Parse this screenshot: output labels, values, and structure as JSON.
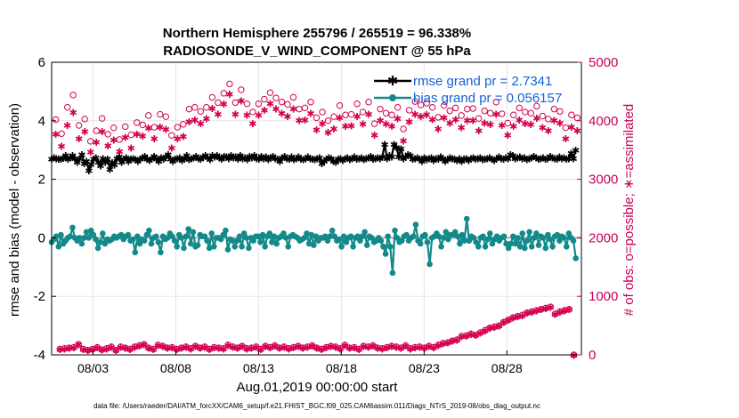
{
  "chart_data": {
    "type": "line",
    "title": "Northern Hemisphere 255796 / 265519 = 96.338%",
    "subtitle": "RADIOSONDE_V_WIND_COMPONENT @ 55 hPa",
    "xlabel": "Aug.01,2019 00:00:00 start",
    "ylabel": "rmse and bias (model - observation)",
    "ylabel_right": "# of obs: o=possible; ∗=assimilated",
    "footer": "data file: /Users/raeder/DAI/ATM_forcXX/CAM6_setup/f.e21.FHIST_BGC.f09_025.CAM6assim.011/Diags_NTrS_2019-08/obs_diag_output.nc",
    "ylim": [
      -4,
      6
    ],
    "ylim_right": [
      0,
      5000
    ],
    "xlim": [
      0.5,
      32.5
    ],
    "yticks": [
      "-4",
      "-2",
      "0",
      "2",
      "4",
      "6"
    ],
    "yticks_right": [
      "0",
      "1000",
      "2000",
      "3000",
      "4000",
      "5000"
    ],
    "xticks": [
      {
        "value": 3,
        "label": "08/03"
      },
      {
        "value": 8,
        "label": "08/08"
      },
      {
        "value": 13,
        "label": "08/13"
      },
      {
        "value": 18,
        "label": "08/18"
      },
      {
        "value": 23,
        "label": "08/23"
      },
      {
        "value": 28,
        "label": "08/28"
      }
    ],
    "grid": true,
    "legend_position": "top-right",
    "x_step_days": 0.25,
    "series": [
      {
        "name": "rmse grand pr = 2.7341",
        "color": "#000000",
        "marker": "star",
        "values": [
          2.7,
          2.75,
          2.72,
          2.7,
          2.7,
          2.73,
          2.82,
          2.7,
          2.75,
          2.82,
          2.72,
          2.6,
          2.72,
          2.85,
          2.55,
          2.62,
          2.3,
          2.52,
          2.7,
          2.75,
          2.6,
          2.48,
          2.72,
          2.6,
          2.7,
          2.35,
          2.58,
          2.5,
          2.72,
          2.78,
          2.6,
          2.7,
          2.75,
          2.62,
          2.7,
          2.72,
          2.68,
          2.62,
          2.7,
          2.75,
          2.8,
          2.7,
          2.65,
          2.72,
          2.8,
          2.7,
          2.62,
          2.75,
          2.7,
          2.78,
          2.85,
          2.7,
          2.62,
          2.7,
          2.72,
          2.75,
          2.65,
          2.72,
          2.82,
          2.68,
          2.72,
          2.75,
          2.8,
          2.72,
          2.7,
          2.78,
          2.82,
          2.75,
          2.68,
          2.82,
          2.78,
          2.82,
          2.75,
          2.7,
          2.8,
          2.78,
          2.72,
          2.82,
          2.75,
          2.78,
          2.7,
          2.82,
          2.72,
          2.75,
          2.68,
          2.8,
          2.75,
          2.82,
          2.72,
          2.7,
          2.8,
          2.72,
          2.78,
          2.68,
          2.75,
          2.8,
          2.72,
          2.7,
          2.62,
          2.75,
          2.8,
          2.72,
          2.7,
          2.78,
          2.68,
          2.72,
          2.78,
          2.7,
          2.68,
          2.72,
          2.78,
          2.72,
          2.7,
          2.68,
          2.72,
          2.75,
          2.55,
          2.62,
          2.7,
          2.75,
          2.72,
          2.62,
          2.6,
          2.7,
          2.72,
          2.65,
          2.72,
          2.75,
          2.68,
          2.72,
          2.78,
          2.7,
          2.72,
          2.75,
          2.68,
          2.72,
          2.75,
          2.8,
          2.7,
          2.72,
          2.75,
          2.72,
          2.78,
          3.2,
          2.72,
          2.82,
          2.78,
          3.2,
          3.1,
          2.78,
          3.05,
          2.72,
          2.78,
          2.85,
          2.82,
          2.7,
          2.72,
          2.75,
          2.7,
          2.62,
          2.75,
          2.68,
          2.72,
          2.75,
          2.65,
          2.72,
          2.7,
          2.78,
          2.72,
          2.62,
          2.68,
          2.75,
          2.72,
          2.7,
          2.65,
          2.72,
          2.62,
          2.7,
          2.72,
          2.65,
          2.72,
          2.75,
          2.7,
          2.72,
          2.75,
          2.68,
          2.7,
          2.72,
          2.75,
          2.7,
          2.65,
          2.72,
          2.78,
          2.72,
          2.7,
          2.75,
          2.72,
          2.85,
          2.82,
          2.72,
          2.75,
          2.78,
          2.72,
          2.75,
          2.68,
          2.72,
          2.75,
          2.8,
          2.75,
          2.7,
          2.72,
          2.75,
          2.7,
          2.72,
          2.8,
          2.75,
          2.72,
          2.7,
          2.78,
          2.72,
          2.75,
          2.7,
          2.72,
          2.9,
          2.72,
          3.0
        ]
      },
      {
        "name": "bias grand pr = 0.056157",
        "color": "#138a8a",
        "marker": "circle",
        "values": [
          -0.15,
          -0.05,
          0.05,
          -0.3,
          0.1,
          -0.2,
          -0.1,
          0.0,
          0.05,
          0.35,
          0.0,
          -0.1,
          0.0,
          -0.2,
          0.0,
          0.2,
          0.0,
          0.25,
          0.1,
          -0.05,
          -0.35,
          -0.15,
          0.15,
          -0.2,
          -0.05,
          -0.1,
          -0.05,
          0.05,
          0.0,
          0.05,
          0.1,
          -0.05,
          0.05,
          0.1,
          -0.1,
          -0.05,
          -0.5,
          0.05,
          -0.2,
          -0.05,
          -0.1,
          0.1,
          0.25,
          -0.2,
          0.0,
          0.05,
          -0.15,
          -0.5,
          0.05,
          -0.05,
          0.0,
          0.15,
          0.05,
          -0.1,
          -0.3,
          0.1,
          0.0,
          -0.35,
          0.05,
          0.3,
          -0.2,
          0.2,
          -0.3,
          -0.25,
          0.1,
          0.05,
          0.05,
          -0.1,
          -0.35,
          0.15,
          -0.3,
          0.0,
          0.0,
          -0.05,
          0.1,
          0.25,
          -0.4,
          -0.05,
          -0.1,
          -0.3,
          -0.1,
          0.05,
          -0.3,
          0.15,
          0.0,
          -0.35,
          0.0,
          -0.1,
          0.05,
          0.05,
          -0.15,
          0.1,
          -0.3,
          0.05,
          0.15,
          -0.15,
          0.05,
          -0.2,
          0.0,
          0.05,
          0.15,
          0.0,
          -0.3,
          0.05,
          0.1,
          0.05,
          0.0,
          -0.1,
          -0.05,
          0.0,
          0.15,
          -0.2,
          0.1,
          -0.25,
          0.05,
          -0.1,
          0.0,
          0.0,
          0.05,
          -0.1,
          0.05,
          0.25,
          0.05,
          -0.1,
          -0.05,
          -0.3,
          0.05,
          -0.15,
          0.0,
          0.05,
          -0.3,
          0.0,
          0.05,
          -0.1,
          0.05,
          0.2,
          -0.25,
          0.05,
          0.0,
          -0.15,
          -0.1,
          0.0,
          -0.1,
          -0.3,
          -0.55,
          0.05,
          -0.3,
          -1.2,
          0.25,
          0.0,
          -0.15,
          -0.1,
          0.05,
          0.1,
          -0.1,
          0.0,
          0.05,
          0.45,
          -0.1,
          -0.2,
          0.05,
          0.1,
          -0.15,
          -0.9,
          0.0,
          0.05,
          0.15,
          0.05,
          -0.3,
          0.0,
          0.2,
          -0.05,
          0.1,
          0.1,
          0.2,
          0.05,
          -0.2,
          0.1,
          -0.1,
          0.65,
          -0.1,
          0.05,
          0.0,
          -0.15,
          -0.3,
          0.0,
          0.05,
          -0.3,
          -0.05,
          0.15,
          -0.2,
          -0.05,
          0.05,
          -0.1,
          0.0,
          0.05,
          -0.2,
          -0.35,
          -0.2,
          0.05,
          -0.2,
          0.0,
          -0.3,
          0.15,
          -0.35,
          -0.1,
          0.2,
          -0.3,
          0.0,
          0.15,
          -0.25,
          0.05,
          0.0,
          -0.35,
          0.1,
          -0.05,
          -0.3,
          0.05,
          0.1,
          -0.1,
          0.05,
          0.0,
          -0.3,
          0.15,
          0.0,
          -0.1,
          -0.7
        ]
      }
    ],
    "obs_count_step_days": 1,
    "obs_count_x0": 0.75,
    "possible_obs": [
      4020,
      3780,
      4230,
      4440,
      3920,
      4030,
      3650,
      3830,
      4040,
      3770,
      3880,
      3680,
      3900,
      3760,
      3970,
      3930,
      4090,
      3890,
      4110,
      4070,
      3750,
      3890,
      3940,
      4200,
      4230,
      4160,
      4230,
      4400,
      4310,
      4470,
      4630,
      4310,
      4530,
      4290,
      4150,
      4290,
      4370,
      4480,
      4390,
      4320,
      4280,
      4400,
      4200,
      4220,
      4320,
      4050,
      4150,
      4000,
      4070,
      4260,
      4100,
      4110,
      4290,
      4150,
      4320,
      3950,
      4200,
      4130,
      4100,
      4230,
      3860,
      4180,
      4330,
      4270,
      4300,
      4230,
      4060,
      4260,
      4170,
      4220,
      4090,
      4200,
      4210,
      4040,
      4170,
      4130,
      4320,
      4120,
      3960,
      4100,
      4220,
      4150,
      4130,
      4250,
      4080,
      4030,
      4200,
      4160,
      3880,
      4100,
      4050
    ],
    "assimilated_obs": [
      3780,
      3570,
      3930,
      4150,
      3700,
      3820,
      3470,
      3640,
      3820,
      3580,
      3680,
      3480,
      3720,
      3540,
      3780,
      3750,
      3880,
      3700,
      3900,
      3860,
      3540,
      3700,
      3740,
      3990,
      4020,
      3960,
      4040,
      4220,
      4120,
      4290,
      4460,
      4120,
      4350,
      4100,
      3960,
      4100,
      4190,
      4300,
      4210,
      4130,
      4080,
      4210,
      4010,
      4020,
      4130,
      3850,
      3960,
      3810,
      3870,
      4060,
      3910,
      3920,
      4080,
      3950,
      4120,
      3760,
      4010,
      3950,
      3910,
      4040,
      3660,
      3990,
      4120,
      4080,
      4110,
      4030,
      3870,
      4060,
      3970,
      4030,
      3890,
      4010,
      4010,
      3840,
      3970,
      3940,
      4120,
      3930,
      3760,
      3910,
      4020,
      3960,
      3940,
      4050,
      3890,
      3840,
      4010,
      3970,
      3700,
      3900,
      3840
    ],
    "possible_obs_low": [
      100,
      110,
      120,
      130,
      180,
      100,
      80,
      100,
      130,
      90,
      110,
      140,
      80,
      140,
      120,
      100,
      140,
      160,
      180,
      120,
      100,
      170,
      150,
      120,
      130,
      100,
      120,
      140,
      110,
      150,
      120,
      140,
      100,
      130,
      120,
      110,
      170,
      140,
      120,
      150,
      110,
      120,
      140,
      100,
      150,
      130,
      160,
      120,
      140,
      110,
      130,
      150,
      120,
      140,
      160,
      120,
      100,
      130,
      150,
      140,
      110,
      170,
      120,
      130,
      100,
      150,
      140,
      160,
      120,
      110,
      130,
      150,
      140,
      120,
      160,
      110,
      130,
      140,
      120,
      150,
      130,
      170,
      200,
      210,
      240,
      260,
      320,
      330,
      360,
      340,
      380,
      420,
      460,
      480,
      500,
      560,
      600,
      640,
      660,
      680,
      720,
      740,
      760,
      780,
      800,
      820,
      700,
      740,
      760,
      780,
      0
    ],
    "assimilated_obs_low": [
      100,
      110,
      120,
      130,
      180,
      100,
      80,
      100,
      130,
      90,
      110,
      140,
      80,
      140,
      120,
      100,
      140,
      160,
      180,
      120,
      100,
      170,
      150,
      120,
      130,
      100,
      120,
      140,
      110,
      150,
      120,
      140,
      100,
      130,
      120,
      110,
      170,
      140,
      120,
      150,
      110,
      120,
      140,
      100,
      150,
      130,
      160,
      120,
      140,
      110,
      130,
      150,
      120,
      140,
      160,
      120,
      100,
      130,
      150,
      140,
      110,
      170,
      120,
      130,
      100,
      150,
      140,
      160,
      120,
      110,
      130,
      150,
      140,
      120,
      160,
      110,
      130,
      140,
      120,
      150,
      130,
      170,
      200,
      210,
      240,
      260,
      320,
      330,
      360,
      340,
      380,
      420,
      460,
      480,
      500,
      560,
      600,
      640,
      660,
      680,
      720,
      740,
      760,
      780,
      800,
      820,
      700,
      740,
      760,
      780,
      0
    ]
  },
  "colors": {
    "rmse": "#000000",
    "bias": "#138a8a",
    "obs": "#d4004f",
    "right_axis": "#c8005a",
    "legend_text": "#1560d8",
    "grid": "#e6e6e6",
    "zero_line": "#bbbbbb"
  }
}
